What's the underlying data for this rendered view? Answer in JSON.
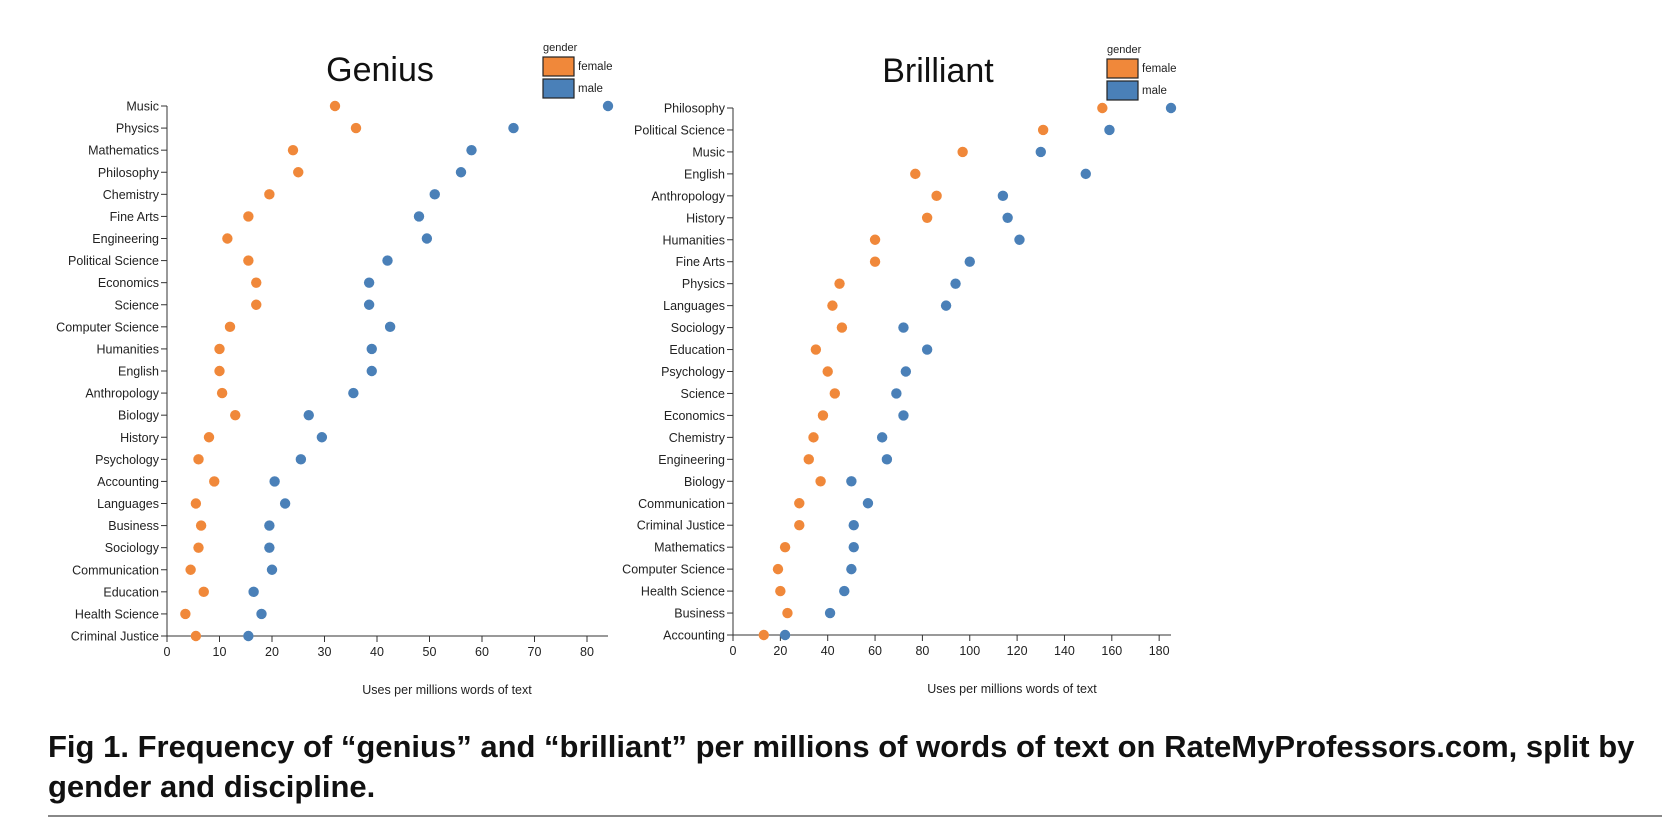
{
  "colors": {
    "female": "#f0883a",
    "male": "#4a80b8",
    "axis": "#333333"
  },
  "caption": "Fig 1. Frequency of “genius” and “brilliant” per millions of words of text on RateMyProfessors.com, split by gender and discipline.",
  "chart_data": [
    {
      "type": "scatter",
      "title": "Genius",
      "xlabel": "Uses per millions words of text",
      "ylabel": "",
      "xlim": [
        0,
        84
      ],
      "xticks": [
        0,
        10,
        20,
        30,
        40,
        50,
        60,
        70,
        80
      ],
      "legend": {
        "title": "gender",
        "entries": [
          "female",
          "male"
        ],
        "position": "top-right"
      },
      "categories": [
        "Music",
        "Physics",
        "Mathematics",
        "Philosophy",
        "Chemistry",
        "Fine Arts",
        "Engineering",
        "Political Science",
        "Economics",
        "Science",
        "Computer Science",
        "Humanities",
        "English",
        "Anthropology",
        "Biology",
        "History",
        "Psychology",
        "Accounting",
        "Languages",
        "Business",
        "Sociology",
        "Communication",
        "Education",
        "Health Science",
        "Criminal Justice"
      ],
      "series": [
        {
          "name": "female",
          "values": [
            32,
            36,
            24,
            25,
            19.5,
            15.5,
            11.5,
            15.5,
            17,
            17,
            12,
            10,
            10,
            10.5,
            13,
            8,
            6,
            9,
            5.5,
            6.5,
            6,
            4.5,
            7,
            3.5,
            5.5
          ]
        },
        {
          "name": "male",
          "values": [
            84,
            66,
            58,
            56,
            51,
            48,
            49.5,
            42,
            38.5,
            38.5,
            42.5,
            39,
            39,
            35.5,
            27,
            29.5,
            25.5,
            20.5,
            22.5,
            19.5,
            19.5,
            20,
            16.5,
            18,
            15.5
          ]
        }
      ]
    },
    {
      "type": "scatter",
      "title": "Brilliant",
      "xlabel": "Uses per millions words of text",
      "ylabel": "",
      "xlim": [
        0,
        185
      ],
      "xticks": [
        0,
        20,
        40,
        60,
        80,
        100,
        120,
        140,
        160,
        180
      ],
      "legend": {
        "title": "gender",
        "entries": [
          "female",
          "male"
        ],
        "position": "top-right"
      },
      "categories": [
        "Philosophy",
        "Political Science",
        "Music",
        "English",
        "Anthropology",
        "History",
        "Humanities",
        "Fine Arts",
        "Physics",
        "Languages",
        "Sociology",
        "Education",
        "Psychology",
        "Science",
        "Economics",
        "Chemistry",
        "Engineering",
        "Biology",
        "Communication",
        "Criminal Justice",
        "Mathematics",
        "Computer Science",
        "Health Science",
        "Business",
        "Accounting"
      ],
      "series": [
        {
          "name": "female",
          "values": [
            156,
            131,
            97,
            77,
            86,
            82,
            60,
            60,
            45,
            42,
            46,
            35,
            40,
            43,
            38,
            34,
            32,
            37,
            28,
            28,
            22,
            19,
            20,
            23,
            13
          ]
        },
        {
          "name": "male",
          "values": [
            185,
            159,
            130,
            149,
            114,
            116,
            121,
            100,
            94,
            90,
            72,
            82,
            73,
            69,
            72,
            63,
            65,
            50,
            57,
            51,
            51,
            50,
            47,
            41,
            22
          ]
        }
      ]
    }
  ]
}
